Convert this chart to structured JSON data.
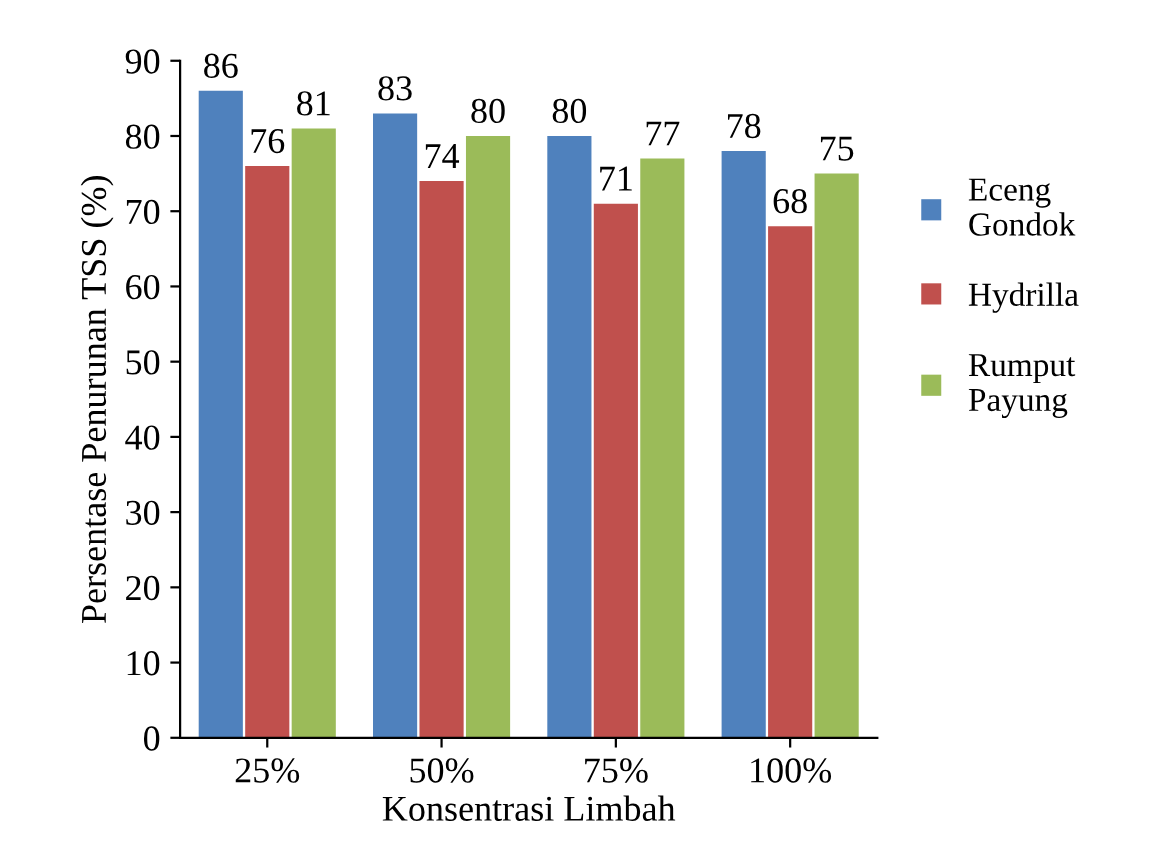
{
  "chart_data": {
    "type": "bar",
    "xlabel": "Konsentrasi Limbah",
    "ylabel": "Persentase Penurunan TSS (%)",
    "categories": [
      "25%",
      "50%",
      "75%",
      "100%"
    ],
    "series": [
      {
        "name": "Eceng Gondok",
        "color": "#4f81bd",
        "values": [
          86,
          83,
          80,
          78
        ]
      },
      {
        "name": "Hydrilla",
        "color": "#c0504d",
        "values": [
          76,
          74,
          71,
          68
        ]
      },
      {
        "name": "Rumput Payung",
        "color": "#9bbb59",
        "values": [
          81,
          80,
          77,
          75
        ]
      }
    ],
    "ylim": [
      0,
      90
    ],
    "yticks": [
      0,
      10,
      20,
      30,
      40,
      50,
      60,
      70,
      80,
      90
    ],
    "grid": false,
    "legend": "right",
    "data_labels": true
  }
}
